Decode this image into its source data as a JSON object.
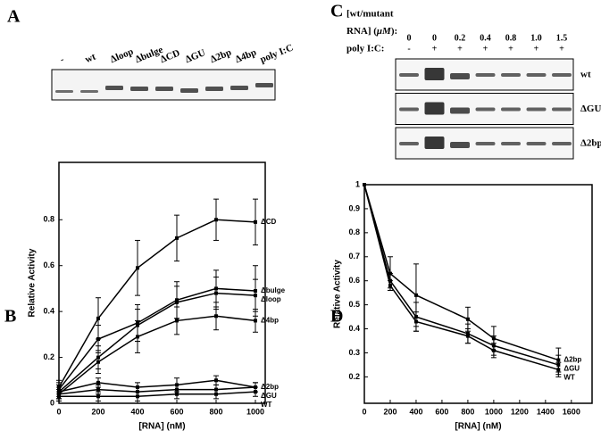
{
  "panels": [
    "A",
    "B",
    "C",
    "D"
  ],
  "gel_a": {
    "lanes": [
      "-",
      "wt",
      "Δloop",
      "Δbulge",
      "ΔCD",
      "ΔGU",
      "Δ2bp",
      "Δ4bp",
      "poly I:C"
    ]
  },
  "gel_c": {
    "header": [
      "[wt/mutant",
      "RNA] (",
      "μM",
      "):"
    ],
    "concentrations": [
      "0",
      "0",
      "0.2",
      "0.4",
      "0.8",
      "1.0",
      "1.5"
    ],
    "poly_label": "poly I:C:",
    "poly": [
      "-",
      "+",
      "+",
      "+",
      "+",
      "+",
      "+"
    ],
    "rows": [
      "wt",
      "ΔGU",
      "Δ2bp"
    ]
  },
  "chart_data": [
    {
      "type": "line",
      "xlabel": "[RNA] (nM)",
      "ylabel": "Relative Activity",
      "x": [
        0,
        200,
        400,
        600,
        800,
        1000
      ],
      "xlim": [
        0,
        1050
      ],
      "ylim": [
        0,
        1.05
      ],
      "xticks": [
        0,
        200,
        400,
        600,
        800,
        1000
      ],
      "yticks": [
        0,
        0.2,
        0.4,
        0.6,
        0.8
      ],
      "series": [
        {
          "name": "ΔCD",
          "color": "#000000",
          "values": [
            0.07,
            0.37,
            0.59,
            0.72,
            0.8,
            0.79
          ],
          "errors": [
            0.03,
            0.09,
            0.12,
            0.1,
            0.09,
            0.1
          ]
        },
        {
          "name": "Δbulge",
          "color": "#000000",
          "values": [
            0.06,
            0.28,
            0.35,
            0.45,
            0.5,
            0.49
          ],
          "errors": [
            0.03,
            0.06,
            0.08,
            0.08,
            0.08,
            0.11
          ]
        },
        {
          "name": "Δloop",
          "color": "#000000",
          "values": [
            0.05,
            0.2,
            0.34,
            0.44,
            0.48,
            0.47
          ],
          "errors": [
            0.03,
            0.05,
            0.07,
            0.07,
            0.07,
            0.07
          ]
        },
        {
          "name": "Δ4bp",
          "color": "#000000",
          "values": [
            0.04,
            0.18,
            0.29,
            0.36,
            0.38,
            0.36
          ],
          "errors": [
            0.03,
            0.05,
            0.07,
            0.06,
            0.06,
            0.05
          ]
        },
        {
          "name": "Δ2bp",
          "color": "#000000",
          "values": [
            0.05,
            0.09,
            0.07,
            0.08,
            0.1,
            0.07
          ],
          "errors": [
            0.03,
            0.02,
            0.02,
            0.03,
            0.02,
            0.02
          ]
        },
        {
          "name": "ΔGU",
          "color": "#000000",
          "values": [
            0.04,
            0.06,
            0.05,
            0.06,
            0.06,
            0.07
          ],
          "errors": [
            0.02,
            0.02,
            0.02,
            0.02,
            0.02,
            0.02
          ]
        },
        {
          "name": "WT",
          "color": "#000000",
          "values": [
            0.03,
            0.03,
            0.03,
            0.04,
            0.04,
            0.05
          ],
          "errors": [
            0.02,
            0.02,
            0.02,
            0.02,
            0.02,
            0.02
          ]
        }
      ]
    },
    {
      "type": "line",
      "xlabel": "[RNA] (nM)",
      "ylabel": "Relative Activity",
      "x": [
        0,
        200,
        400,
        800,
        1000,
        1500
      ],
      "xlim": [
        0,
        1760
      ],
      "ylim": [
        0.09,
        1.0
      ],
      "xticks": [
        0,
        200,
        400,
        600,
        800,
        1000,
        1200,
        1400,
        1600
      ],
      "yticks": [
        0.2,
        0.3,
        0.4,
        0.5,
        0.6,
        0.7,
        0.8,
        0.9,
        1
      ],
      "series": [
        {
          "name": "Δ2bp",
          "color": "#000000",
          "values": [
            1,
            0.63,
            0.54,
            0.44,
            0.36,
            0.27
          ],
          "errors": [
            0,
            0.07,
            0.13,
            0.05,
            0.05,
            0.05
          ]
        },
        {
          "name": "ΔGU",
          "color": "#000000",
          "values": [
            1,
            0.6,
            0.45,
            0.38,
            0.33,
            0.25
          ],
          "errors": [
            0,
            0.03,
            0.06,
            0.04,
            0.04,
            0.04
          ]
        },
        {
          "name": "WT",
          "color": "#000000",
          "values": [
            1,
            0.58,
            0.43,
            0.37,
            0.31,
            0.23
          ],
          "errors": [
            0,
            0.02,
            0.04,
            0.03,
            0.03,
            0.03
          ]
        }
      ]
    }
  ]
}
